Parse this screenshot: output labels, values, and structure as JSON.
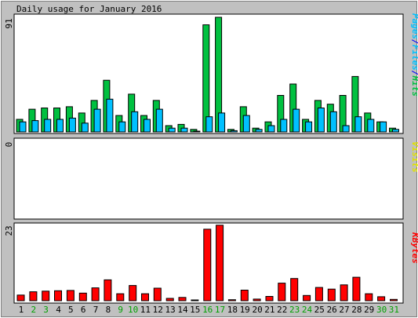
{
  "chart_data": [
    {
      "type": "bar",
      "title": "Daily usage for January 2016",
      "ymax_label": "91",
      "ylim": [
        0,
        91
      ],
      "side_label_parts": [
        "Pages",
        "/",
        "Files",
        "/",
        "Hits"
      ],
      "side_label_colors": [
        "#00c0ff",
        "#0000ff",
        "#00c0ff",
        "#0000ff",
        "#00c040"
      ],
      "categories": [
        "1",
        "2",
        "3",
        "4",
        "5",
        "6",
        "7",
        "8",
        "9",
        "10",
        "11",
        "12",
        "13",
        "14",
        "15",
        "16",
        "17",
        "18",
        "19",
        "20",
        "21",
        "22",
        "23",
        "24",
        "25",
        "26",
        "27",
        "28",
        "29",
        "30",
        "31"
      ],
      "weekend_days": [
        "2",
        "3",
        "9",
        "10",
        "16",
        "17",
        "23",
        "24",
        "30",
        "31"
      ],
      "series": [
        {
          "name": "Hits",
          "color": "#00c040",
          "values": [
            10,
            18,
            19,
            19,
            20,
            15,
            25,
            41,
            13,
            30,
            13,
            25,
            5,
            6,
            2,
            85,
            91,
            2,
            20,
            3,
            8,
            29,
            38,
            10,
            25,
            22,
            29,
            44,
            15,
            8,
            3
          ]
        },
        {
          "name": "Pages",
          "color": "#00c0ff",
          "values": [
            8,
            9,
            10,
            10,
            11,
            7,
            18,
            26,
            8,
            16,
            10,
            18,
            3,
            3,
            0,
            12,
            15,
            1,
            13,
            2,
            5,
            10,
            18,
            8,
            19,
            16,
            5,
            12,
            10,
            8,
            2
          ]
        }
      ]
    },
    {
      "type": "bar",
      "ymax_label": "0",
      "ylim": [
        0,
        1
      ],
      "side_label": "Visits",
      "side_label_color": "#e0e000",
      "series": [
        {
          "name": "Visits",
          "color": "#e0e000",
          "values": []
        }
      ]
    },
    {
      "type": "bar",
      "ymax_label": "23",
      "ylim": [
        0,
        23
      ],
      "side_label": "KBytes",
      "side_label_color": "#ff0000",
      "series": [
        {
          "name": "KBytes",
          "color": "#ff0000",
          "values": [
            1.7,
            2.7,
            2.9,
            3.0,
            3.1,
            2.3,
            3.9,
            6.3,
            2.1,
            4.6,
            2.1,
            3.8,
            0.7,
            1.0,
            0.2,
            21.6,
            22.8,
            0.3,
            3.2,
            0.5,
            1.3,
            5.3,
            6.7,
            1.6,
            4.0,
            3.5,
            4.8,
            7.1,
            2.1,
            1.2,
            0.4
          ]
        }
      ]
    }
  ]
}
